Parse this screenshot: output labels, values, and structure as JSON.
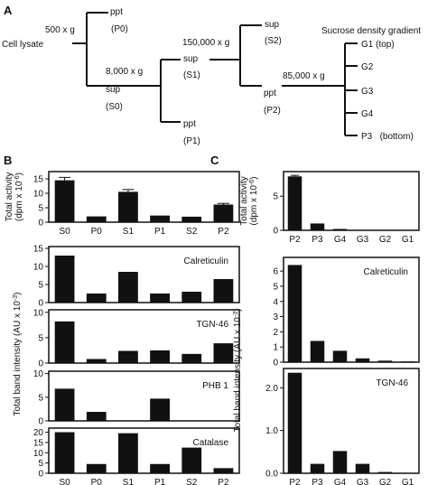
{
  "panel_letters": [
    "A",
    "B",
    "C"
  ],
  "flowchart": {
    "cell_lysate": "Cell lysate",
    "g500": "500 x g",
    "ppt": "ppt",
    "p0": "(P0)",
    "g8000": "8,000 x g",
    "sup": "sup",
    "s0": "(S0)",
    "s1": "(S1)",
    "p1": "(P1)",
    "g150000": "150,000 x g",
    "s2": "(S2)",
    "g85000": "85,000 x g",
    "p2": "(P2)",
    "gradient_title": "Sucrose density gradient",
    "g1": "G1 (top)",
    "g2": "G2",
    "g3": "G3",
    "g4": "G4",
    "p3": "P3   (bottom)"
  },
  "chart_data": [
    {
      "panel": "B",
      "type": "bar",
      "label": "",
      "categories": [
        "S0",
        "P0",
        "S1",
        "P1",
        "S2",
        "P2"
      ],
      "values": [
        14.5,
        2.0,
        10.5,
        2.3,
        1.9,
        6.1
      ],
      "errors": [
        1.0,
        0,
        0.8,
        0,
        0,
        0.4
      ],
      "ylim": [
        0,
        17.5
      ],
      "yticks": [
        0,
        5,
        10,
        15
      ],
      "ylabel": "Total activity",
      "ylabel_unit": "(dpm x 10",
      "ylabel_exp": "-6",
      "ylabel_end": ")",
      "show_xticks": true
    },
    {
      "panel": "B",
      "type": "bar",
      "label": "Calreticulin",
      "categories": [
        "S0",
        "P0",
        "S1",
        "P1",
        "S2",
        "P2"
      ],
      "values": [
        13.0,
        2.5,
        8.5,
        2.5,
        3.0,
        6.5
      ],
      "errors": [
        0,
        0,
        0,
        0,
        0,
        0
      ],
      "ylim": [
        0,
        15.5
      ],
      "yticks": [
        0,
        5,
        10,
        15
      ],
      "show_xticks": false
    },
    {
      "panel": "B",
      "type": "bar",
      "label": "TGN-46",
      "categories": [
        "S0",
        "P0",
        "S1",
        "P1",
        "S2",
        "P2"
      ],
      "values": [
        8.2,
        0.8,
        2.4,
        2.5,
        1.8,
        3.9
      ],
      "errors": [
        0,
        0,
        0,
        0,
        0,
        0
      ],
      "ylim": [
        0,
        10.5
      ],
      "yticks": [
        0,
        5,
        10
      ],
      "show_xticks": false
    },
    {
      "panel": "B",
      "type": "bar",
      "label": "PHB 1",
      "categories": [
        "S0",
        "P0",
        "S1",
        "P1",
        "S2",
        "P2"
      ],
      "values": [
        6.8,
        1.9,
        0,
        4.7,
        0,
        0
      ],
      "errors": [
        0,
        0,
        0,
        0,
        0,
        0
      ],
      "ylim": [
        0,
        10.5
      ],
      "yticks": [
        0,
        5,
        10
      ],
      "show_xticks": false
    },
    {
      "panel": "B",
      "type": "bar",
      "label": "Catalase",
      "categories": [
        "S0",
        "P0",
        "S1",
        "P1",
        "S2",
        "P2"
      ],
      "values": [
        20.0,
        4.5,
        19.5,
        4.5,
        12.5,
        2.5
      ],
      "errors": [
        0,
        0,
        0,
        0,
        0,
        0
      ],
      "ylim": [
        0,
        22
      ],
      "yticks": [
        0,
        5,
        10,
        15,
        20
      ],
      "show_xticks": true
    },
    {
      "panel": "C",
      "type": "bar",
      "label": "",
      "categories": [
        "P2",
        "P3",
        "G4",
        "G3",
        "G2",
        "G1"
      ],
      "values": [
        7.9,
        1.0,
        0.2,
        0.05,
        0.05,
        0.05
      ],
      "errors": [
        0.15,
        0,
        0,
        0,
        0,
        0
      ],
      "ylim": [
        0,
        8.6
      ],
      "yticks": [
        0,
        5
      ],
      "ylabel": "Total activity",
      "ylabel_unit": "(dpm x 10",
      "ylabel_exp": "-6",
      "ylabel_end": ")",
      "show_xticks": true
    },
    {
      "panel": "C",
      "type": "bar",
      "label": "Calreticulin",
      "categories": [
        "P2",
        "P3",
        "G4",
        "G3",
        "G2",
        "G1"
      ],
      "values": [
        6.4,
        1.4,
        0.75,
        0.25,
        0.1,
        0.05
      ],
      "errors": [
        0,
        0,
        0,
        0,
        0,
        0
      ],
      "ylim": [
        0,
        6.9
      ],
      "yticks": [
        0,
        1,
        2,
        3,
        4,
        5,
        6
      ],
      "show_xticks": false
    },
    {
      "panel": "C",
      "type": "bar",
      "label": "TGN-46",
      "categories": [
        "P2",
        "P3",
        "G4",
        "G3",
        "G2",
        "G1"
      ],
      "values": [
        2.35,
        0.22,
        0.52,
        0.22,
        0.03,
        0.01
      ],
      "errors": [
        0,
        0,
        0,
        0,
        0,
        0
      ],
      "ylim": [
        0,
        2.45
      ],
      "yticks": [
        0,
        1.0,
        2.0
      ],
      "tick_decimals": 1,
      "show_xticks": true
    }
  ],
  "shared_labels": {
    "b_band": "Total band intensity (AU x 10",
    "b_band_exp": "-3",
    "b_band_end": ")",
    "c_band": "Total band intensity (AU x 10",
    "c_band_exp": "-3",
    "c_band_end": ")"
  },
  "colors": {
    "bar": "#111111",
    "line": "#111111",
    "background": "#ffffff"
  }
}
